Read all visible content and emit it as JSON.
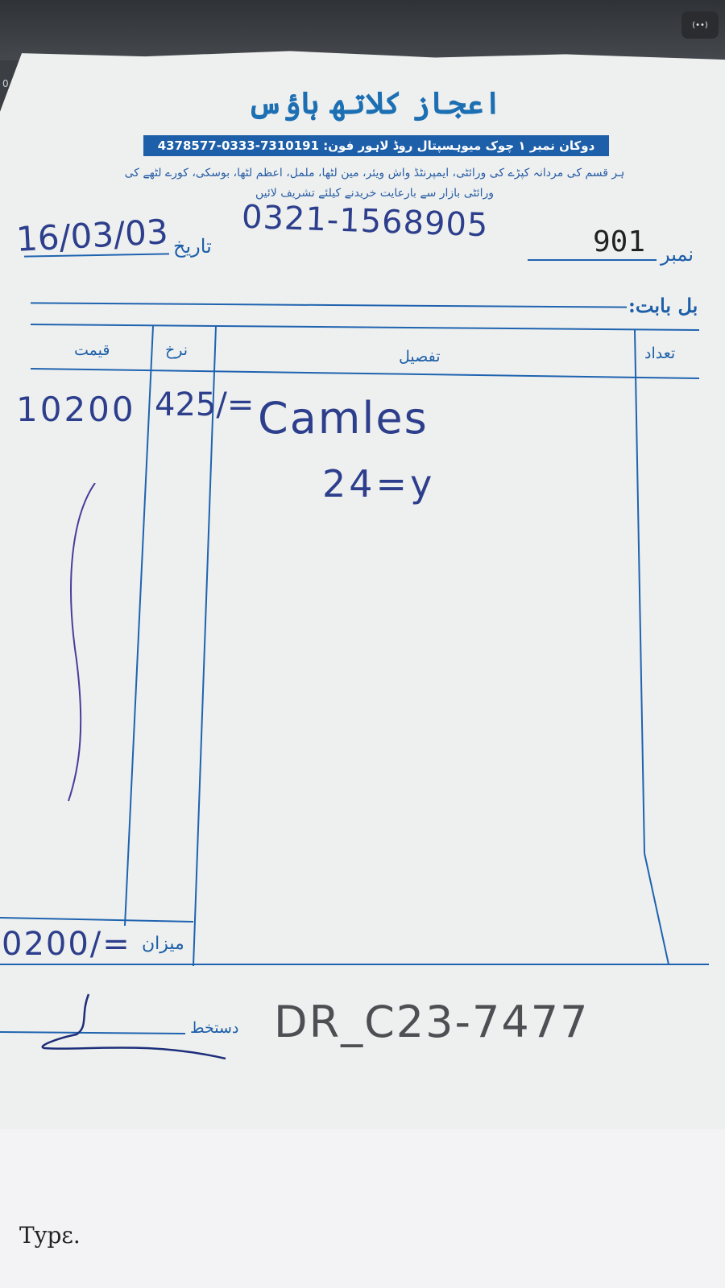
{
  "status_badge": "(••)",
  "edge_marks": [
    "0",
    "("
  ],
  "receipt": {
    "shop_name": "اعجاز کلاتھ ہاؤس",
    "address_phone": "دوکان نمبر ۱ چوک میوہسپتال روڈ لاہور فون: 7310191-0333-4378577",
    "tagline_1": "ہر قسم کی مردانہ کپڑے کی ورائٹی، ایمپرنٹڈ واش ویئر، مین لٹھا، ململ، اعظم لٹھا، بوسکی، کورے لٹھے کی",
    "tagline_2": "ورائٹی بازار سے بارعایت خریدنے کیلئے تشریف لائیں",
    "date_label": "تاریخ",
    "date_value": "16/03/03",
    "handwritten_phone": "0321-1568905",
    "number_label": "نمبر",
    "number_value": "901",
    "bill_label": "بل بابت:",
    "columns": {
      "quantity": "تعداد",
      "details": "تفصیل",
      "rate": "نرخ",
      "price": "قیمت"
    },
    "row": {
      "price": "10200",
      "rate": "425/=",
      "details_line1": "Camles",
      "details_line2": "24=y"
    },
    "total_label": "میزان",
    "total_value": "0200/=",
    "signature_label": "دستخط",
    "stamp_code": "DR_C23-7477"
  },
  "desk_text": "Typɛ."
}
